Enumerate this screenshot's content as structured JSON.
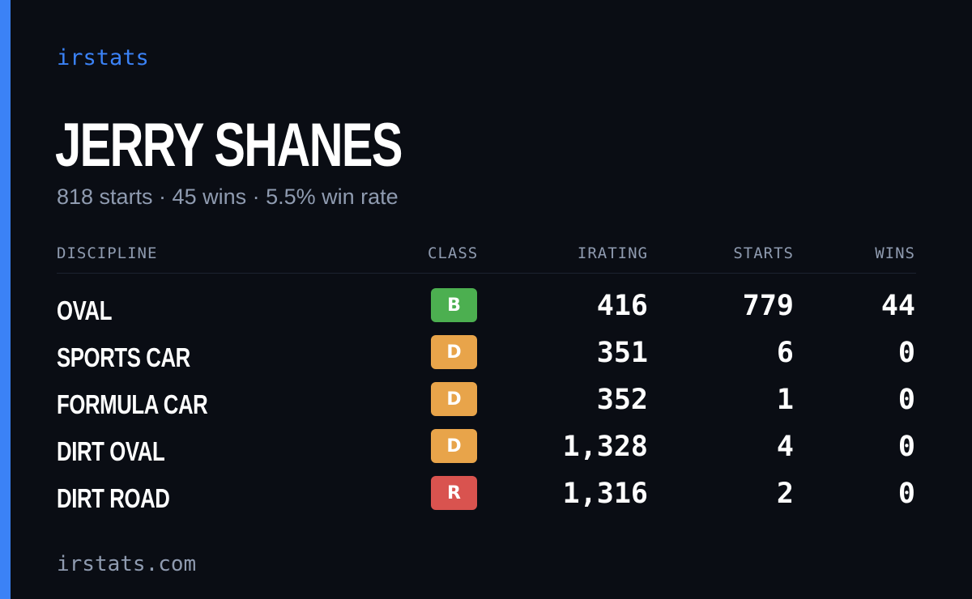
{
  "brand": "irstats",
  "driver": {
    "name": "JERRY SHANES",
    "summary": "818 starts · 45 wins · 5.5% win rate"
  },
  "table": {
    "headers": {
      "discipline": "DISCIPLINE",
      "class": "CLASS",
      "irating": "IRATING",
      "starts": "STARTS",
      "wins": "WINS"
    },
    "rows": [
      {
        "discipline": "OVAL",
        "class": "B",
        "class_color": "#4caf50",
        "irating": "416",
        "starts": "779",
        "wins": "44"
      },
      {
        "discipline": "SPORTS CAR",
        "class": "D",
        "class_color": "#e8a44a",
        "irating": "351",
        "starts": "6",
        "wins": "0"
      },
      {
        "discipline": "FORMULA CAR",
        "class": "D",
        "class_color": "#e8a44a",
        "irating": "352",
        "starts": "1",
        "wins": "0"
      },
      {
        "discipline": "DIRT OVAL",
        "class": "D",
        "class_color": "#e8a44a",
        "irating": "1,328",
        "starts": "4",
        "wins": "0"
      },
      {
        "discipline": "DIRT ROAD",
        "class": "R",
        "class_color": "#d9534f",
        "irating": "1,316",
        "starts": "2",
        "wins": "0"
      }
    ]
  },
  "footer": "irstats.com",
  "colors": {
    "background": "#0a0d14",
    "accent": "#3b82f6",
    "muted": "#8f9bb0"
  }
}
